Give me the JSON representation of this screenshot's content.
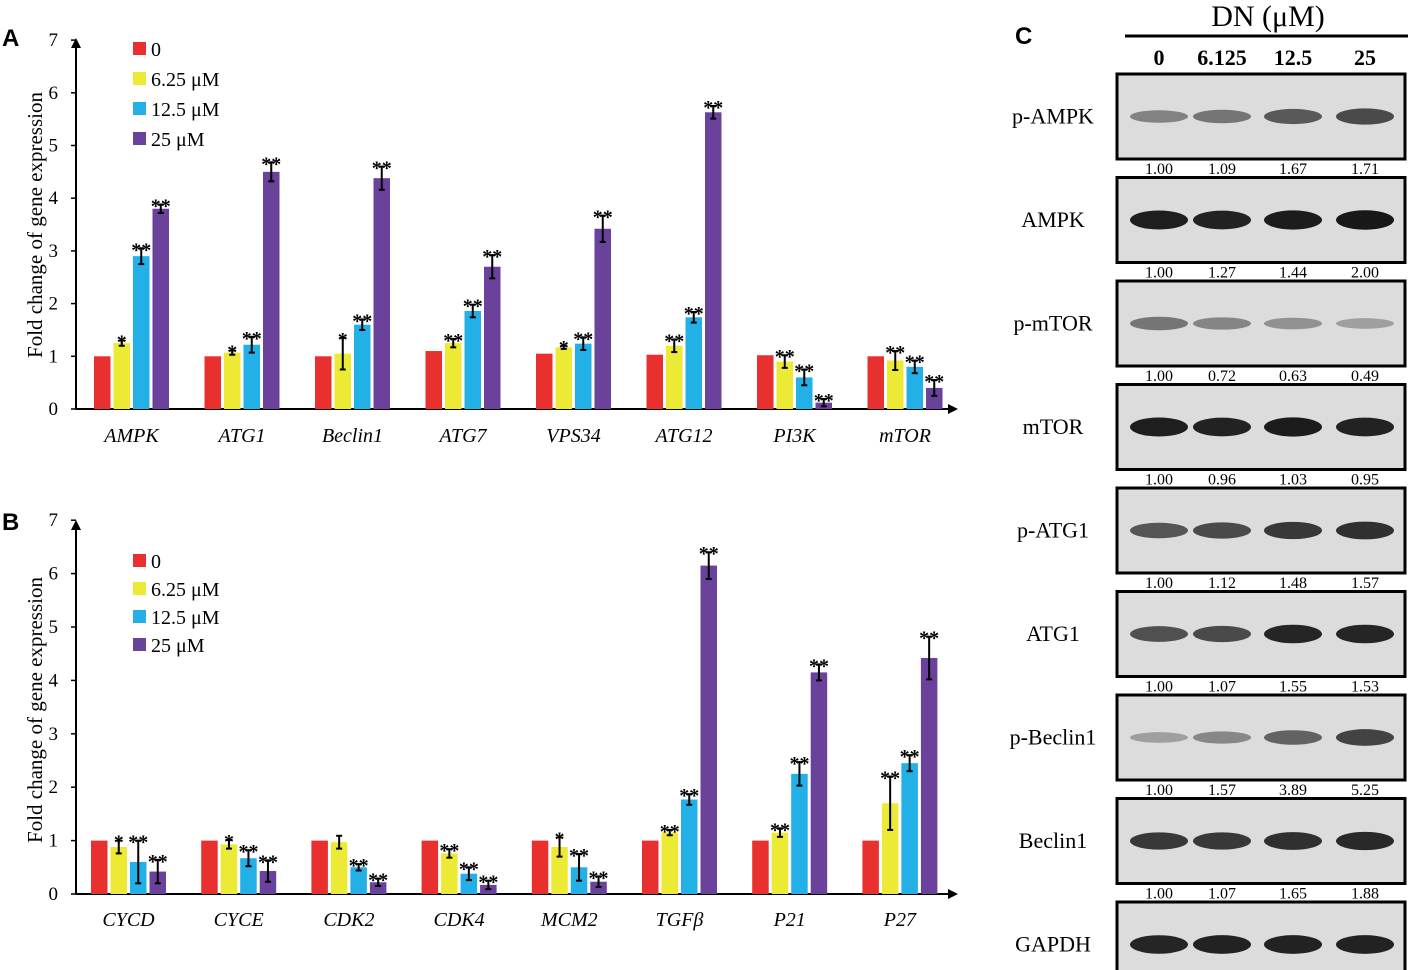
{
  "panels": {
    "a": "A",
    "b": "B",
    "c": "C"
  },
  "colors": {
    "0": "#e8312f",
    "6.25": "#ecea35",
    "12.5": "#22b0e6",
    "25": "#6a429b"
  },
  "legend": [
    "0",
    "6.25 μM",
    "12.5 μM",
    "25 μM"
  ],
  "chart_data": [
    {
      "type": "bar",
      "id": "A",
      "ylabel": "Fold change of gene expression",
      "ylim": [
        0,
        7
      ],
      "yticks": [
        0,
        1,
        2,
        3,
        4,
        5,
        6,
        7
      ],
      "categories": [
        "AMPK",
        "ATG1",
        "Beclin1",
        "ATG7",
        "VPS34",
        "ATG12",
        "PI3K",
        "mTOR"
      ],
      "series": [
        {
          "name": "0",
          "values": [
            1.0,
            1.0,
            1.0,
            1.1,
            1.05,
            1.03,
            1.02,
            1.0
          ],
          "errors": [
            0,
            0,
            0,
            0,
            0,
            0,
            0,
            0
          ],
          "marks": [
            "",
            "",
            "",
            "",
            "",
            "",
            "",
            ""
          ]
        },
        {
          "name": "6.25 μM",
          "values": [
            1.25,
            1.07,
            1.05,
            1.25,
            1.17,
            1.2,
            0.9,
            0.92
          ],
          "errors": [
            0.05,
            0.04,
            0.3,
            0.08,
            0.03,
            0.12,
            0.12,
            0.18
          ],
          "marks": [
            "*",
            "*",
            "*",
            "**",
            "*",
            "**",
            "**",
            "**"
          ]
        },
        {
          "name": "12.5 μM",
          "values": [
            2.9,
            1.22,
            1.6,
            1.86,
            1.24,
            1.74,
            0.6,
            0.8
          ],
          "errors": [
            0.15,
            0.15,
            0.1,
            0.12,
            0.12,
            0.1,
            0.15,
            0.12
          ],
          "marks": [
            "**",
            "**",
            "**",
            "**",
            "**",
            "**",
            "**",
            "**"
          ]
        },
        {
          "name": "25 μM",
          "values": [
            3.8,
            4.5,
            4.38,
            2.7,
            3.42,
            5.63,
            0.12,
            0.4
          ],
          "errors": [
            0.08,
            0.18,
            0.22,
            0.22,
            0.25,
            0.12,
            0.07,
            0.15
          ],
          "marks": [
            "**",
            "**",
            "**",
            "**",
            "**",
            "**",
            "**",
            "**"
          ]
        }
      ]
    },
    {
      "type": "bar",
      "id": "B",
      "ylabel": "Fold change of gene expression",
      "ylim": [
        0,
        7
      ],
      "yticks": [
        0,
        1,
        2,
        3,
        4,
        5,
        6,
        7
      ],
      "categories": [
        "CYCD",
        "CYCE",
        "CDK2",
        "CDK4",
        "MCM2",
        "TGFβ",
        "P21",
        "P27"
      ],
      "series": [
        {
          "name": "0",
          "values": [
            1.0,
            1.0,
            1.0,
            1.0,
            1.0,
            1.0,
            1.0,
            1.0
          ],
          "errors": [
            0,
            0,
            0,
            0,
            0,
            0,
            0,
            0
          ],
          "marks": [
            "",
            "",
            "",
            "",
            "",
            "",
            "",
            ""
          ]
        },
        {
          "name": "6.25 μM",
          "values": [
            0.88,
            0.93,
            0.97,
            0.76,
            0.88,
            1.15,
            1.15,
            1.7
          ],
          "errors": [
            0.12,
            0.08,
            0.12,
            0.08,
            0.18,
            0.05,
            0.08,
            0.5
          ],
          "marks": [
            "*",
            "*",
            "",
            "**",
            "*",
            "**",
            "**",
            "**"
          ]
        },
        {
          "name": "12.5 μM",
          "values": [
            0.6,
            0.67,
            0.5,
            0.38,
            0.5,
            1.77,
            2.25,
            2.45
          ],
          "errors": [
            0.4,
            0.15,
            0.06,
            0.12,
            0.25,
            0.1,
            0.22,
            0.15
          ],
          "marks": [
            "**",
            "**",
            "**",
            "**",
            "**",
            "**",
            "**",
            "**"
          ]
        },
        {
          "name": "25 μM",
          "values": [
            0.42,
            0.43,
            0.22,
            0.17,
            0.23,
            6.15,
            4.15,
            4.42
          ],
          "errors": [
            0.22,
            0.2,
            0.07,
            0.08,
            0.1,
            0.25,
            0.15,
            0.4
          ],
          "marks": [
            "**",
            "**",
            "**",
            "**",
            "**",
            "**",
            "**",
            "**"
          ]
        }
      ]
    }
  ],
  "blot": {
    "header": "DN (μM)",
    "lanes": [
      "0",
      "6.125",
      "12.5",
      "25"
    ],
    "rows": [
      {
        "label": "p-AMPK",
        "intensity": [
          0.38,
          0.45,
          0.6,
          0.68
        ],
        "quant": [
          "1.00",
          "1.09",
          "1.67",
          "1.71"
        ]
      },
      {
        "label": "AMPK",
        "intensity": [
          0.92,
          0.9,
          0.93,
          0.95
        ],
        "quant": [
          "1.00",
          "1.27",
          "1.44",
          "2.00"
        ]
      },
      {
        "label": "p-mTOR",
        "intensity": [
          0.45,
          0.36,
          0.3,
          0.22
        ],
        "quant": [
          "1.00",
          "0.72",
          "0.63",
          "0.49"
        ]
      },
      {
        "label": "mTOR",
        "intensity": [
          0.92,
          0.9,
          0.93,
          0.9
        ],
        "quant": [
          "1.00",
          "0.96",
          "1.03",
          "0.95"
        ]
      },
      {
        "label": "p-ATG1",
        "intensity": [
          0.62,
          0.68,
          0.78,
          0.82
        ],
        "quant": [
          "1.00",
          "1.12",
          "1.48",
          "1.57"
        ]
      },
      {
        "label": "ATG1",
        "intensity": [
          0.65,
          0.68,
          0.88,
          0.88
        ],
        "quant": [
          "1.00",
          "1.07",
          "1.55",
          "1.53"
        ]
      },
      {
        "label": "p-Beclin1",
        "intensity": [
          0.22,
          0.35,
          0.55,
          0.72
        ],
        "quant": [
          "1.00",
          "1.57",
          "3.89",
          "5.25"
        ]
      },
      {
        "label": "Beclin1",
        "intensity": [
          0.78,
          0.78,
          0.82,
          0.86
        ],
        "quant": [
          "1.00",
          "1.07",
          "1.65",
          "1.88"
        ]
      },
      {
        "label": "GAPDH",
        "intensity": [
          0.88,
          0.9,
          0.9,
          0.9
        ],
        "quant": []
      }
    ]
  }
}
